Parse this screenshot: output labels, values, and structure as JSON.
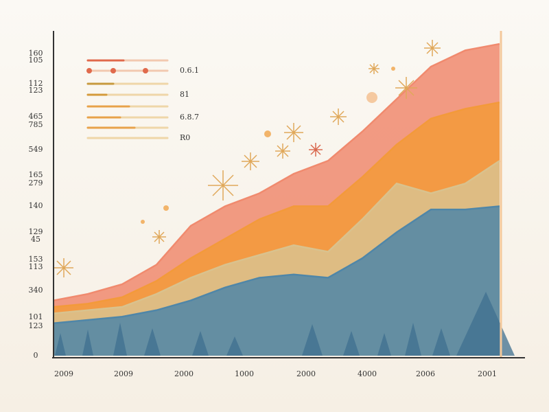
{
  "chart_data": {
    "type": "stacked-area",
    "y_axis_labels": [
      "160",
      "105",
      "112",
      "123",
      "465",
      "785",
      "549",
      "165",
      "279",
      "140",
      "129",
      "45",
      "153",
      "113",
      "340",
      "101",
      "123",
      "0"
    ],
    "x_labels": [
      "2009",
      "2009",
      "2000",
      "1000",
      "2000",
      "4000",
      "2006",
      "2001"
    ],
    "legend_labels": [
      "0.6.1",
      "81",
      "6.8.7",
      "R0"
    ],
    "ylim": [
      0,
      100
    ],
    "series": [
      {
        "color": "#4f86a8",
        "values": [
          10,
          11,
          12,
          14,
          17,
          21,
          24,
          25,
          24,
          30,
          38,
          45,
          45,
          46
        ]
      },
      {
        "color": "#d9c28e",
        "values": [
          3,
          3,
          3,
          5,
          7,
          7,
          7,
          9,
          8,
          12,
          15,
          5,
          8,
          14
        ]
      },
      {
        "color": "#f39a3a",
        "values": [
          2,
          2,
          3,
          4,
          6,
          8,
          11,
          12,
          14,
          13,
          12,
          23,
          23,
          18
        ]
      },
      {
        "color": "#f08a6e",
        "values": [
          2,
          3,
          4,
          5,
          10,
          10,
          8,
          10,
          14,
          14,
          14,
          16,
          18,
          18
        ]
      }
    ]
  }
}
